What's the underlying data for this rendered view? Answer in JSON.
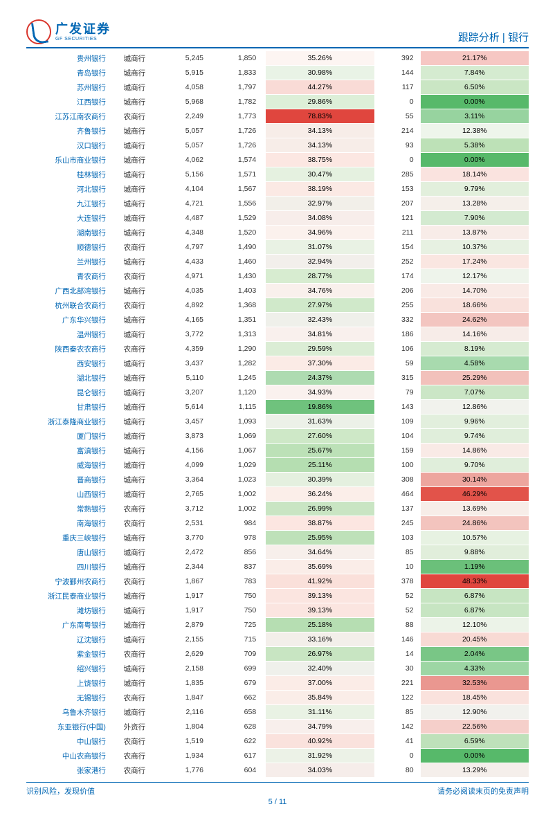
{
  "header": {
    "logo_cn": "广发证券",
    "logo_en": "GF SECURITIES",
    "category": "跟踪分析",
    "divider": "|",
    "sector": "银行"
  },
  "footer": {
    "left": "识别风险，发现价值",
    "right": "请务必阅读末页的免责声明",
    "page_current": "5",
    "page_sep": " / ",
    "page_total": "11"
  },
  "heat": {
    "p1_min": 19.86,
    "p1_max": 78.83,
    "p2_min": 0.0,
    "p2_max": 48.33,
    "green_rgb": "61,171,87",
    "red_rgb": "224,70,62",
    "neutral": "#fdf5f5"
  },
  "rows": [
    {
      "name": "贵州银行",
      "type": "城商行",
      "v1": "5,245",
      "v2": "1,850",
      "p1": 35.26,
      "v3": "392",
      "p2": 21.17,
      "c1": "#fdf5f2",
      "c2": "#f6c7c3"
    },
    {
      "name": "青岛银行",
      "type": "城商行",
      "v1": "5,915",
      "v2": "1,833",
      "p1": 30.98,
      "v3": "144",
      "p2": 7.84,
      "c1": "#e9f3e6",
      "c2": "#d5ebd0"
    },
    {
      "name": "苏州银行",
      "type": "城商行",
      "v1": "4,058",
      "v2": "1,797",
      "p1": 44.27,
      "v3": "117",
      "p2": 6.5,
      "c1": "#f9dbd6",
      "c2": "#cae6c4"
    },
    {
      "name": "江西银行",
      "type": "城商行",
      "v1": "5,968",
      "v2": "1,782",
      "p1": 29.86,
      "v3": "0",
      "p2": 0.0,
      "c1": "#ddefd8",
      "c2": "#57b96a"
    },
    {
      "name": "江苏江南农商行",
      "type": "农商行",
      "v1": "2,249",
      "v2": "1,773",
      "p1": 78.83,
      "v3": "55",
      "p2": 3.11,
      "c1": "#e0463e",
      "c2": "#97d39f"
    },
    {
      "name": "齐鲁银行",
      "type": "城商行",
      "v1": "5,057",
      "v2": "1,726",
      "p1": 34.13,
      "v3": "214",
      "p2": 12.38,
      "c1": "#f7ede8",
      "c2": "#eef5eb"
    },
    {
      "name": "汉口银行",
      "type": "城商行",
      "v1": "5,057",
      "v2": "1,726",
      "p1": 34.13,
      "v3": "93",
      "p2": 5.38,
      "c1": "#f7ede8",
      "c2": "#bde1b7"
    },
    {
      "name": "乐山市商业银行",
      "type": "城商行",
      "v1": "4,062",
      "v2": "1,574",
      "p1": 38.75,
      "v3": "0",
      "p2": 0.0,
      "c1": "#fce7e2",
      "c2": "#57b96a"
    },
    {
      "name": "桂林银行",
      "type": "城商行",
      "v1": "5,156",
      "v2": "1,571",
      "p1": 30.47,
      "v3": "285",
      "p2": 18.14,
      "c1": "#e5f1e0",
      "c2": "#fae3df"
    },
    {
      "name": "河北银行",
      "type": "城商行",
      "v1": "4,104",
      "v2": "1,567",
      "p1": 38.19,
      "v3": "153",
      "p2": 9.79,
      "c1": "#fbe9e4",
      "c2": "#e2efdc"
    },
    {
      "name": "九江银行",
      "type": "城商行",
      "v1": "4,721",
      "v2": "1,556",
      "p1": 32.97,
      "v3": "207",
      "p2": 13.28,
      "c1": "#f2efe9",
      "c2": "#f5efea"
    },
    {
      "name": "大连银行",
      "type": "城商行",
      "v1": "4,487",
      "v2": "1,529",
      "p1": 34.08,
      "v3": "121",
      "p2": 7.9,
      "c1": "#f7edea",
      "c2": "#d3ead0"
    },
    {
      "name": "湖南银行",
      "type": "城商行",
      "v1": "4,348",
      "v2": "1,520",
      "p1": 34.96,
      "v3": "211",
      "p2": 13.87,
      "c1": "#fbf1ed",
      "c2": "#f8ece8"
    },
    {
      "name": "顺德银行",
      "type": "农商行",
      "v1": "4,797",
      "v2": "1,490",
      "p1": 31.07,
      "v3": "154",
      "p2": 10.37,
      "c1": "#e9f2e4",
      "c2": "#e7f1e2"
    },
    {
      "name": "兰州银行",
      "type": "城商行",
      "v1": "4,433",
      "v2": "1,460",
      "p1": 32.94,
      "v3": "252",
      "p2": 17.24,
      "c1": "#f2efeb",
      "c2": "#fae6e1"
    },
    {
      "name": "青农商行",
      "type": "农商行",
      "v1": "4,971",
      "v2": "1,430",
      "p1": 28.77,
      "v3": "174",
      "p2": 12.17,
      "c1": "#d7ecd0",
      "c2": "#eef4eb"
    },
    {
      "name": "广西北部湾银行",
      "type": "城商行",
      "v1": "4,035",
      "v2": "1,403",
      "p1": 34.76,
      "v3": "206",
      "p2": 14.7,
      "c1": "#f9f0ec",
      "c2": "#f9eae6"
    },
    {
      "name": "杭州联合农商行",
      "type": "农商行",
      "v1": "4,892",
      "v2": "1,368",
      "p1": 27.97,
      "v3": "255",
      "p2": 18.66,
      "c1": "#d0e9ca",
      "c2": "#f9e1dc"
    },
    {
      "name": "广东华兴银行",
      "type": "城商行",
      "v1": "4,165",
      "v2": "1,351",
      "p1": 32.43,
      "v3": "332",
      "p2": 24.62,
      "c1": "#eff0ea",
      "c2": "#f3c5c0"
    },
    {
      "name": "温州银行",
      "type": "城商行",
      "v1": "3,772",
      "v2": "1,313",
      "p1": 34.81,
      "v3": "186",
      "p2": 14.16,
      "c1": "#f9f0ed",
      "c2": "#f7ece8"
    },
    {
      "name": "陕西秦农农商行",
      "type": "农商行",
      "v1": "4,359",
      "v2": "1,290",
      "p1": 29.59,
      "v3": "106",
      "p2": 8.19,
      "c1": "#dbedd5",
      "c2": "#d6ebd1"
    },
    {
      "name": "西安银行",
      "type": "城商行",
      "v1": "3,437",
      "v2": "1,282",
      "p1": 37.3,
      "v3": "59",
      "p2": 4.58,
      "c1": "#fbebe6",
      "c2": "#a8daae"
    },
    {
      "name": "湖北银行",
      "type": "城商行",
      "v1": "5,110",
      "v2": "1,245",
      "p1": 24.37,
      "v3": "315",
      "p2": 25.29,
      "c1": "#aedbb1",
      "c2": "#f2c1bb"
    },
    {
      "name": "昆仑银行",
      "type": "城商行",
      "v1": "3,207",
      "v2": "1,120",
      "p1": 34.93,
      "v3": "79",
      "p2": 7.07,
      "c1": "#faf1ee",
      "c2": "#cbe6c6"
    },
    {
      "name": "甘肃银行",
      "type": "城商行",
      "v1": "5,614",
      "v2": "1,115",
      "p1": 19.86,
      "v3": "143",
      "p2": 12.86,
      "c1": "#6fc27d",
      "c2": "#f1f2ed"
    },
    {
      "name": "浙江泰隆商业银行",
      "type": "城商行",
      "v1": "3,457",
      "v2": "1,093",
      "p1": 31.63,
      "v3": "109",
      "p2": 9.96,
      "c1": "#ecf1e8",
      "c2": "#e2efdd"
    },
    {
      "name": "厦门银行",
      "type": "城商行",
      "v1": "3,873",
      "v2": "1,069",
      "p1": 27.6,
      "v3": "104",
      "p2": 9.74,
      "c1": "#cee8c7",
      "c2": "#e0eedb"
    },
    {
      "name": "富滇银行",
      "type": "城商行",
      "v1": "4,156",
      "v2": "1,067",
      "p1": 25.67,
      "v3": "159",
      "p2": 14.86,
      "c1": "#bce1b7",
      "c2": "#f9eae6"
    },
    {
      "name": "威海银行",
      "type": "城商行",
      "v1": "4,099",
      "v2": "1,029",
      "p1": 25.11,
      "v3": "100",
      "p2": 9.7,
      "c1": "#b5deb1",
      "c2": "#e0eedb"
    },
    {
      "name": "晋商银行",
      "type": "城商行",
      "v1": "3,364",
      "v2": "1,023",
      "p1": 30.39,
      "v3": "308",
      "p2": 30.14,
      "c1": "#e4f0df",
      "c2": "#eda59e"
    },
    {
      "name": "山西银行",
      "type": "城商行",
      "v1": "2,765",
      "v2": "1,002",
      "p1": 36.24,
      "v3": "464",
      "p2": 46.29,
      "c1": "#fbeee9",
      "c2": "#e2534a"
    },
    {
      "name": "常熟银行",
      "type": "农商行",
      "v1": "3,712",
      "v2": "1,002",
      "p1": 26.99,
      "v3": "137",
      "p2": 13.69,
      "c1": "#c9e5c3",
      "c2": "#f7ede8"
    },
    {
      "name": "南海银行",
      "type": "农商行",
      "v1": "2,531",
      "v2": "984",
      "p1": 38.87,
      "v3": "245",
      "p2": 24.86,
      "c1": "#fce6e1",
      "c2": "#f3c4be"
    },
    {
      "name": "重庆三峡银行",
      "type": "城商行",
      "v1": "3,770",
      "v2": "978",
      "p1": 25.95,
      "v3": "103",
      "p2": 10.57,
      "c1": "#bee1b9",
      "c2": "#e7f2e2"
    },
    {
      "name": "唐山银行",
      "type": "城商行",
      "v1": "2,472",
      "v2": "856",
      "p1": 34.64,
      "v3": "85",
      "p2": 9.88,
      "c1": "#f7efeb",
      "c2": "#e1eedb"
    },
    {
      "name": "四川银行",
      "type": "城商行",
      "v1": "2,344",
      "v2": "837",
      "p1": 35.69,
      "v3": "10",
      "p2": 1.19,
      "c1": "#faede8",
      "c2": "#6bc07a"
    },
    {
      "name": "宁波鄞州农商行",
      "type": "农商行",
      "v1": "1,867",
      "v2": "783",
      "p1": 41.92,
      "v3": "378",
      "p2": 48.33,
      "c1": "#fae0da",
      "c2": "#e0463e"
    },
    {
      "name": "浙江民泰商业银行",
      "type": "城商行",
      "v1": "1,917",
      "v2": "750",
      "p1": 39.13,
      "v3": "52",
      "p2": 6.87,
      "c1": "#fbe5e0",
      "c2": "#c7e5c2"
    },
    {
      "name": "潍坊银行",
      "type": "城商行",
      "v1": "1,917",
      "v2": "750",
      "p1": 39.13,
      "v3": "52",
      "p2": 6.87,
      "c1": "#fbe5e0",
      "c2": "#c7e5c2"
    },
    {
      "name": "广东南粤银行",
      "type": "城商行",
      "v1": "2,879",
      "v2": "725",
      "p1": 25.18,
      "v3": "88",
      "p2": 12.1,
      "c1": "#b6deb2",
      "c2": "#ecf3e8"
    },
    {
      "name": "辽沈银行",
      "type": "城商行",
      "v1": "2,155",
      "v2": "715",
      "p1": 33.16,
      "v3": "146",
      "p2": 20.45,
      "c1": "#f3efea",
      "c2": "#f8dad4"
    },
    {
      "name": "紫金银行",
      "type": "农商行",
      "v1": "2,629",
      "v2": "709",
      "p1": 26.97,
      "v3": "14",
      "p2": 2.04,
      "c1": "#c8e5c2",
      "c2": "#79c686"
    },
    {
      "name": "绍兴银行",
      "type": "城商行",
      "v1": "2,158",
      "v2": "699",
      "p1": 32.4,
      "v3": "30",
      "p2": 4.33,
      "c1": "#eff0eb",
      "c2": "#9dd6a4"
    },
    {
      "name": "上饶银行",
      "type": "城商行",
      "v1": "1,835",
      "v2": "679",
      "p1": 37.0,
      "v3": "221",
      "p2": 32.53,
      "c1": "#fbece7",
      "c2": "#ea9790"
    },
    {
      "name": "无锡银行",
      "type": "农商行",
      "v1": "1,847",
      "v2": "662",
      "p1": 35.84,
      "v3": "122",
      "p2": 18.45,
      "c1": "#faede8",
      "c2": "#fae2dd"
    },
    {
      "name": "乌鲁木齐银行",
      "type": "城商行",
      "v1": "2,116",
      "v2": "658",
      "p1": 31.11,
      "v3": "85",
      "p2": 12.9,
      "c1": "#e9f2e4",
      "c2": "#f1f1ed"
    },
    {
      "name": "东亚银行(中国)",
      "type": "外资行",
      "v1": "1,804",
      "v2": "628",
      "p1": 34.79,
      "v3": "142",
      "p2": 22.56,
      "c1": "#f8efec",
      "c2": "#f5cfca"
    },
    {
      "name": "中山银行",
      "type": "农商行",
      "v1": "1,519",
      "v2": "622",
      "p1": 40.92,
      "v3": "41",
      "p2": 6.59,
      "c1": "#fae2dd",
      "c2": "#bee1ba"
    },
    {
      "name": "中山农商银行",
      "type": "农商行",
      "v1": "1,934",
      "v2": "617",
      "p1": 31.92,
      "v3": "0",
      "p2": 0.0,
      "c1": "#ecf2e7",
      "c2": "#57b96a"
    },
    {
      "name": "张家港行",
      "type": "农商行",
      "v1": "1,776",
      "v2": "604",
      "p1": 34.03,
      "v3": "80",
      "p2": 13.29,
      "c1": "#f6edea",
      "c2": "#f5efeb"
    }
  ]
}
